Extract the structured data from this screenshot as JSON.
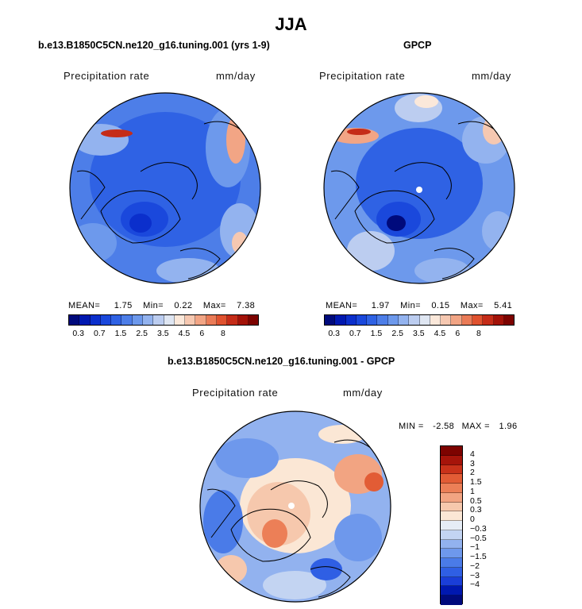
{
  "main_title": "JJA",
  "colors": {
    "blue_scale": [
      "#000a7c",
      "#0018b0",
      "#0b2fcc",
      "#1a48dc",
      "#2f62e4",
      "#4d7ee8",
      "#6d99ec",
      "#93b3ef",
      "#bccdf0",
      "#dfe6f2",
      "#fbe8da",
      "#f6c8b1",
      "#f2a585",
      "#ea7b57",
      "#e0522f",
      "#c52c18",
      "#a31208",
      "#7d0300"
    ],
    "diff_scale": [
      "#000a7c",
      "#0018b0",
      "#1a3ed8",
      "#2f5fe4",
      "#4a7be8",
      "#6e98ec",
      "#92b2ef",
      "#c3d4f2",
      "#e6edf6",
      "#fbe7d5",
      "#f6c8ad",
      "#f2a482",
      "#ec7f57",
      "#e25c35",
      "#c9321a",
      "#a6140a",
      "#7d0300"
    ]
  },
  "panels": [
    {
      "title": "b.e13.B1850C5CN.ne120_g16.tuning.001 (yrs 1-9)",
      "field": "Precipitation rate",
      "units": "mm/day",
      "stats": {
        "mean_label": "MEAN=",
        "mean": "1.75",
        "min_label": "Min=",
        "min": "0.22",
        "max_label": "Max=",
        "max": "7.38"
      },
      "colorbar_ticks": [
        "0.3",
        "0.7",
        "1.5",
        "2.5",
        "3.5",
        "4.5",
        "6",
        "8"
      ]
    },
    {
      "title": "GPCP",
      "field": "Precipitation rate",
      "units": "mm/day",
      "stats": {
        "mean_label": "MEAN=",
        "mean": "1.97",
        "min_label": "Min=",
        "min": "0.15",
        "max_label": "Max=",
        "max": "5.41"
      },
      "colorbar_ticks": [
        "0.3",
        "0.7",
        "1.5",
        "2.5",
        "3.5",
        "4.5",
        "6",
        "8"
      ]
    },
    {
      "title": "b.e13.B1850C5CN.ne120_g16.tuning.001 - GPCP",
      "field": "Precipitation rate",
      "units": "mm/day",
      "stats": {
        "min_label": "MIN =",
        "min": "-2.58",
        "max_label": "MAX =",
        "max": "1.96"
      },
      "colorbar_ticks": [
        "4",
        "3",
        "2",
        "1.5",
        "1",
        "0.5",
        "0.3",
        "0",
        "−0.3",
        "−0.5",
        "−1",
        "−1.5",
        "−2",
        "−3",
        "−4"
      ]
    }
  ],
  "chart_data": [
    {
      "type": "heatmap",
      "projection": "north polar stereographic",
      "title": "b.e13.B1850C5CN.ne120_g16.tuning.001 (yrs 1-9)",
      "variable": "Precipitation rate",
      "units": "mm/day",
      "mean": 1.75,
      "min": 0.22,
      "max": 7.38,
      "levels": [
        0.3,
        0.5,
        0.7,
        1,
        1.5,
        2,
        2.5,
        3,
        3.5,
        4,
        4.5,
        5,
        6,
        7,
        8
      ]
    },
    {
      "type": "heatmap",
      "projection": "north polar stereographic",
      "title": "GPCP",
      "variable": "Precipitation rate",
      "units": "mm/day",
      "mean": 1.97,
      "min": 0.15,
      "max": 5.41,
      "levels": [
        0.3,
        0.5,
        0.7,
        1,
        1.5,
        2,
        2.5,
        3,
        3.5,
        4,
        4.5,
        5,
        6,
        7,
        8
      ]
    },
    {
      "type": "heatmap",
      "projection": "north polar stereographic",
      "title": "b.e13.B1850C5CN.ne120_g16.tuning.001 - GPCP",
      "variable": "Precipitation rate",
      "units": "mm/day",
      "min": -2.58,
      "max": 1.96,
      "levels": [
        -4,
        -3,
        -2,
        -1.5,
        -1,
        -0.5,
        -0.3,
        0,
        0.3,
        0.5,
        1,
        1.5,
        2,
        3,
        4
      ]
    }
  ]
}
